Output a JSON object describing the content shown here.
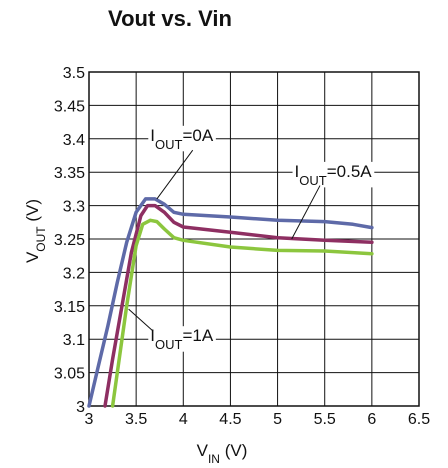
{
  "chart_data": {
    "type": "line",
    "title": "Vout vs. Vin",
    "xlabel": {
      "main": "V",
      "sub": "IN",
      "tail": " (V)"
    },
    "ylabel": {
      "main": "V",
      "sub": "OUT",
      "tail": " (V)"
    },
    "xlim": [
      3,
      6.5
    ],
    "ylim": [
      3,
      3.5
    ],
    "x_ticks": [
      "3",
      "3.5",
      "4",
      "4.5",
      "5",
      "5.5",
      "6",
      "6.5"
    ],
    "y_ticks": [
      "3",
      "3.05",
      "3.1",
      "3.15",
      "3.2",
      "3.25",
      "3.3",
      "3.35",
      "3.4",
      "3.45",
      "3.5"
    ],
    "grid": true,
    "series": [
      {
        "label": {
          "main": "I",
          "sub": "OUT",
          "tail": "=0A"
        },
        "color": "#5e6aa8",
        "points": [
          [
            3.0,
            3.0
          ],
          [
            3.1,
            3.06
          ],
          [
            3.2,
            3.12
          ],
          [
            3.3,
            3.185
          ],
          [
            3.4,
            3.245
          ],
          [
            3.5,
            3.29
          ],
          [
            3.6,
            3.31
          ],
          [
            3.7,
            3.31
          ],
          [
            3.8,
            3.302
          ],
          [
            3.9,
            3.29
          ],
          [
            4.0,
            3.287
          ],
          [
            4.5,
            3.283
          ],
          [
            5.0,
            3.278
          ],
          [
            5.5,
            3.276
          ],
          [
            5.8,
            3.272
          ],
          [
            6.0,
            3.267
          ]
        ]
      },
      {
        "label": {
          "main": "I",
          "sub": "OUT",
          "tail": "=0.5A"
        },
        "color": "#8e2f62",
        "points": [
          [
            3.17,
            3.0
          ],
          [
            3.25,
            3.07
          ],
          [
            3.35,
            3.15
          ],
          [
            3.45,
            3.23
          ],
          [
            3.55,
            3.285
          ],
          [
            3.62,
            3.3
          ],
          [
            3.7,
            3.3
          ],
          [
            3.8,
            3.29
          ],
          [
            3.9,
            3.275
          ],
          [
            4.0,
            3.268
          ],
          [
            4.5,
            3.26
          ],
          [
            5.0,
            3.252
          ],
          [
            5.5,
            3.248
          ],
          [
            6.0,
            3.245
          ]
        ]
      },
      {
        "label": {
          "main": "I",
          "sub": "OUT",
          "tail": "=1A"
        },
        "color": "#8cc63e",
        "points": [
          [
            3.25,
            3.0
          ],
          [
            3.3,
            3.05
          ],
          [
            3.4,
            3.15
          ],
          [
            3.5,
            3.24
          ],
          [
            3.57,
            3.272
          ],
          [
            3.65,
            3.278
          ],
          [
            3.72,
            3.276
          ],
          [
            3.8,
            3.265
          ],
          [
            3.9,
            3.252
          ],
          [
            4.0,
            3.248
          ],
          [
            4.5,
            3.238
          ],
          [
            5.0,
            3.233
          ],
          [
            5.5,
            3.232
          ],
          [
            6.0,
            3.228
          ]
        ]
      }
    ],
    "annotations": [
      {
        "series": 0,
        "text_at": [
          3.65,
          3.397
        ],
        "line_from": [
          4.1,
          3.383
        ],
        "line_to": [
          3.72,
          3.31
        ]
      },
      {
        "series": 1,
        "text_at": [
          5.18,
          3.343
        ],
        "line_from": [
          5.45,
          3.33
        ],
        "line_to": [
          5.15,
          3.25
        ]
      },
      {
        "series": 2,
        "text_at": [
          3.65,
          3.097
        ],
        "line_from": [
          3.68,
          3.112
        ],
        "line_to": [
          3.42,
          3.145
        ]
      }
    ]
  }
}
